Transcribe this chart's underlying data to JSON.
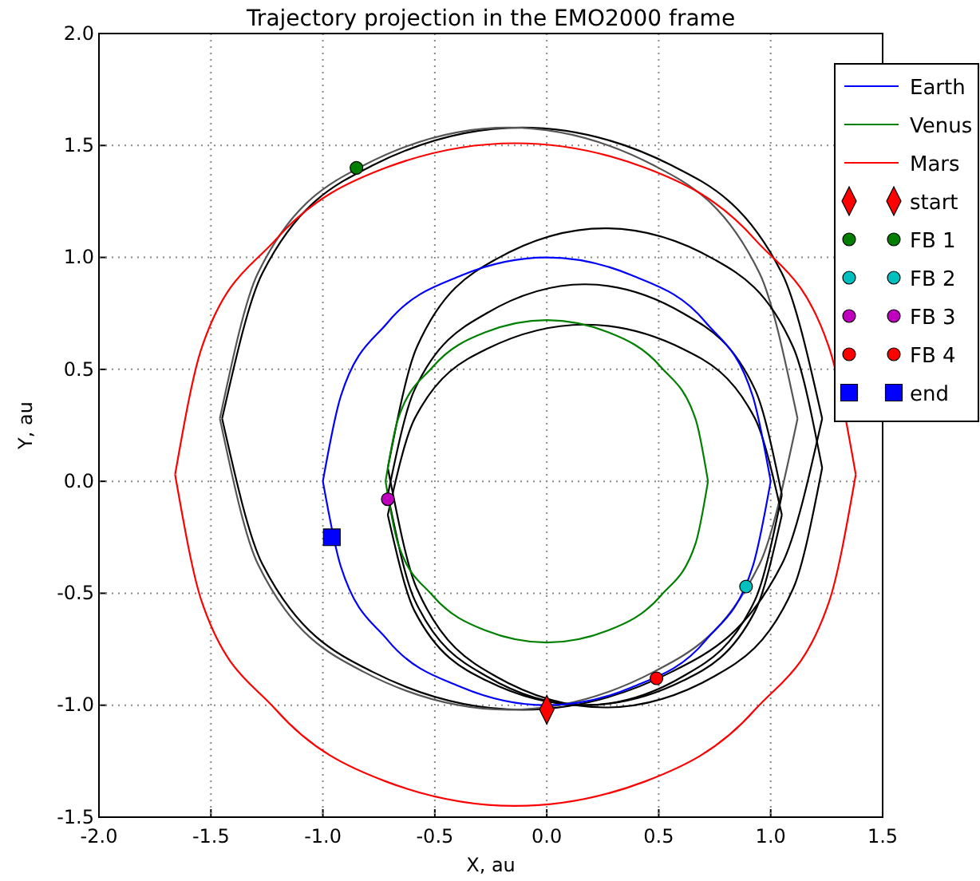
{
  "chart_data": {
    "type": "line",
    "title": "Trajectory projection in the EMO2000 frame",
    "xlabel": "X, au",
    "ylabel": "Y, au",
    "xlim": [
      -2,
      1.5
    ],
    "ylim": [
      -1.5,
      2
    ],
    "xticks": [
      {
        "value": -2,
        "label": "-2.0"
      },
      {
        "value": -1.5,
        "label": "-1.5"
      },
      {
        "value": -1,
        "label": "-1.0"
      },
      {
        "value": -0.5,
        "label": "-0.5"
      },
      {
        "value": 0,
        "label": "0.0"
      },
      {
        "value": 0.5,
        "label": "0.5"
      },
      {
        "value": 1,
        "label": "1.0"
      },
      {
        "value": 1.5,
        "label": "1.5"
      }
    ],
    "yticks": [
      {
        "value": -1.5,
        "label": "-1.5"
      },
      {
        "value": -1,
        "label": "-1.0"
      },
      {
        "value": -0.5,
        "label": "-0.5"
      },
      {
        "value": 0,
        "label": "0.0"
      },
      {
        "value": 0.5,
        "label": "0.5"
      },
      {
        "value": 1,
        "label": "1.0"
      },
      {
        "value": 1.5,
        "label": "1.5"
      },
      {
        "value": 2,
        "label": "2.0"
      }
    ],
    "grid": true,
    "legend": "top right",
    "series": [
      {
        "type": "line",
        "color": "#000000",
        "x": [
          1.23,
          1.05,
          0.56,
          -0.11,
          -0.78,
          -1.27,
          -1.45,
          null,
          -1.45,
          -1.27,
          -0.78,
          -0.11,
          0.56,
          1.05,
          1.23
        ],
        "values": [
          0.28,
          0.93,
          1.41,
          1.58,
          1.41,
          0.93,
          0.28,
          null,
          0.28,
          -0.37,
          -0.85,
          -1.02,
          -0.85,
          -0.37,
          0.28
        ]
      },
      {
        "type": "line",
        "color": "#555555",
        "x": [
          1.12,
          0.95,
          0.48,
          -0.17,
          -0.82,
          -1.29,
          -1.46,
          null,
          -1.46,
          -1.29,
          -0.82,
          -0.17,
          0.48,
          0.95,
          1.12
        ],
        "values": [
          0.28,
          0.93,
          1.41,
          1.58,
          1.41,
          0.93,
          0.28,
          null,
          0.28,
          -0.37,
          -0.85,
          -1.02,
          -0.85,
          -0.37,
          0.28
        ]
      },
      {
        "type": "line",
        "color": "#000000",
        "x": [
          1.23,
          1.1,
          0.75,
          0.26,
          -0.23,
          -0.58,
          -0.71,
          null,
          -0.71,
          -0.58,
          -0.23,
          0.26,
          0.75,
          1.1,
          1.23
        ],
        "values": [
          0.06,
          0.6,
          0.99,
          1.13,
          0.99,
          0.6,
          0.06,
          null,
          0.06,
          -0.48,
          -0.87,
          -1.01,
          -0.87,
          -0.48,
          0.06
        ]
      },
      {
        "type": "line",
        "color": "#000000",
        "x": [
          1.05,
          0.93,
          0.61,
          0.17,
          -0.27,
          -0.59,
          -0.71,
          null,
          -0.71,
          -0.59,
          -0.27,
          0.17,
          0.61,
          0.93,
          1.05
        ],
        "values": [
          -0.06,
          0.41,
          0.75,
          0.88,
          0.75,
          0.41,
          -0.06,
          null,
          -0.06,
          -0.53,
          -0.87,
          -1.0,
          -0.87,
          -0.53,
          -0.06
        ]
      },
      {
        "type": "line",
        "color": "#000000",
        "x": [
          1.05,
          0.93,
          0.61,
          0.17,
          -0.27,
          -0.59,
          -0.71,
          null,
          -0.71,
          -0.59,
          -0.27,
          0.17,
          0.61,
          0.93,
          1.05
        ],
        "values": [
          -0.15,
          0.28,
          0.59,
          0.7,
          0.59,
          0.28,
          -0.15,
          null,
          -0.15,
          -0.58,
          -0.89,
          -1.0,
          -0.89,
          -0.58,
          -0.15
        ]
      },
      {
        "type": "line",
        "name": "Earth",
        "color": "#0000ff",
        "x": [
          1,
          0.92,
          0.71,
          0.38,
          0,
          -0.38,
          -0.71,
          -0.92,
          -1,
          null,
          -1,
          -0.92,
          -0.71,
          -0.38,
          0,
          0.38,
          0.71,
          0.92,
          1
        ],
        "values": [
          0,
          0.38,
          0.71,
          0.92,
          1,
          0.92,
          0.71,
          0.38,
          0,
          null,
          0,
          -0.38,
          -0.71,
          -0.92,
          -1,
          -0.92,
          -0.71,
          -0.38,
          0
        ]
      },
      {
        "type": "line",
        "name": "Venus",
        "color": "#008000",
        "x": [
          0.72,
          0.665,
          0.51,
          0.276,
          0,
          -0.276,
          -0.51,
          -0.665,
          -0.72,
          null,
          -0.72,
          -0.665,
          -0.51,
          -0.276,
          0,
          0.276,
          0.51,
          0.665,
          0.72
        ],
        "values": [
          0,
          0.276,
          0.51,
          0.665,
          0.72,
          0.665,
          0.51,
          0.276,
          0,
          null,
          0,
          -0.276,
          -0.51,
          -0.665,
          -0.72,
          -0.665,
          -0.51,
          -0.276,
          0
        ]
      },
      {
        "type": "line",
        "name": "Mars",
        "color": "#ff0000",
        "x": [
          1.38,
          1.26,
          0.93,
          0.44,
          -0.14,
          -0.72,
          -1.21,
          -1.54,
          -1.66,
          null,
          -1.66,
          -1.54,
          -1.21,
          -0.72,
          -0.14,
          0.44,
          0.93,
          1.26,
          1.38
        ],
        "values": [
          0.03,
          0.6,
          1.08,
          1.4,
          1.51,
          1.4,
          1.08,
          0.6,
          0.03,
          null,
          0.03,
          -0.54,
          -1.02,
          -1.34,
          -1.45,
          -1.34,
          -1.02,
          -0.54,
          0.03
        ]
      },
      {
        "type": "scatter",
        "name": "start",
        "color": "#ff0000",
        "marker": "diamond",
        "x": [
          0
        ],
        "values": [
          -1.02
        ]
      },
      {
        "type": "scatter",
        "name": "FB 1",
        "color": "#007f00",
        "marker": "circle",
        "x": [
          -0.85
        ],
        "values": [
          1.4
        ]
      },
      {
        "type": "scatter",
        "name": "FB 2",
        "color": "#00bfbf",
        "marker": "circle",
        "x": [
          0.89
        ],
        "values": [
          -0.47
        ]
      },
      {
        "type": "scatter",
        "name": "FB 3",
        "color": "#bf00bf",
        "marker": "circle",
        "x": [
          -0.71
        ],
        "values": [
          -0.08
        ]
      },
      {
        "type": "scatter",
        "name": "FB 4",
        "color": "#ff0000",
        "marker": "circle",
        "x": [
          0.49
        ],
        "values": [
          -0.88
        ]
      },
      {
        "type": "scatter",
        "name": "end",
        "color": "#0000ff",
        "marker": "square",
        "x": [
          -0.96
        ],
        "values": [
          -0.25
        ]
      }
    ]
  }
}
